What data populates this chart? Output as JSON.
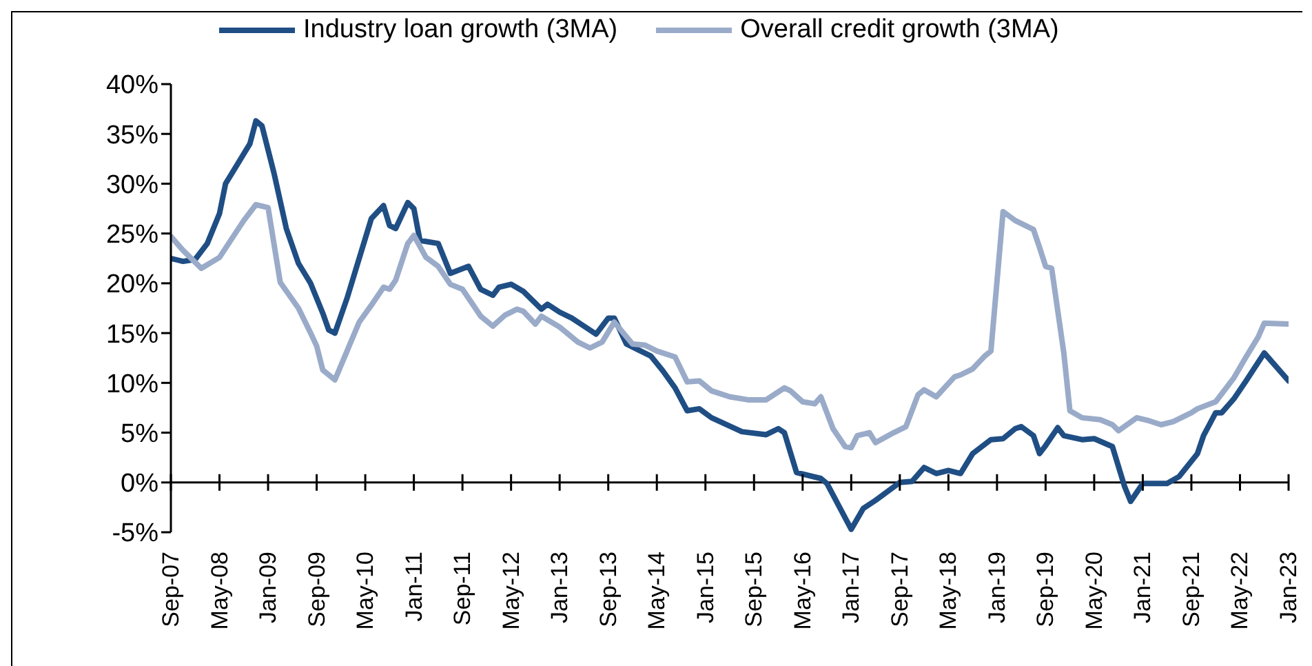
{
  "chart_data": {
    "type": "line",
    "xlim": [
      "2007-09",
      "2023-01"
    ],
    "ylim": [
      -5,
      40
    ],
    "xticks": [
      {
        "value": "2007-09",
        "label": "Sep-07"
      },
      {
        "value": "2008-05",
        "label": "May-08"
      },
      {
        "value": "2009-01",
        "label": "Jan-09"
      },
      {
        "value": "2009-09",
        "label": "Sep-09"
      },
      {
        "value": "2010-05",
        "label": "May-10"
      },
      {
        "value": "2011-01",
        "label": "Jan-11"
      },
      {
        "value": "2011-09",
        "label": "Sep-11"
      },
      {
        "value": "2012-05",
        "label": "May-12"
      },
      {
        "value": "2013-01",
        "label": "Jan-13"
      },
      {
        "value": "2013-09",
        "label": "Sep-13"
      },
      {
        "value": "2014-05",
        "label": "May-14"
      },
      {
        "value": "2015-01",
        "label": "Jan-15"
      },
      {
        "value": "2015-09",
        "label": "Sep-15"
      },
      {
        "value": "2016-05",
        "label": "May-16"
      },
      {
        "value": "2017-01",
        "label": "Jan-17"
      },
      {
        "value": "2017-09",
        "label": "Sep-17"
      },
      {
        "value": "2018-05",
        "label": "May-18"
      },
      {
        "value": "2019-01",
        "label": "Jan-19"
      },
      {
        "value": "2019-09",
        "label": "Sep-19"
      },
      {
        "value": "2020-05",
        "label": "May-20"
      },
      {
        "value": "2021-01",
        "label": "Jan-21"
      },
      {
        "value": "2021-09",
        "label": "Sep-21"
      },
      {
        "value": "2022-05",
        "label": "May-22"
      },
      {
        "value": "2023-01",
        "label": "Jan-23"
      }
    ],
    "yticks": [
      {
        "value": -5,
        "label": "-5%"
      },
      {
        "value": 0,
        "label": "0%"
      },
      {
        "value": 5,
        "label": "5%"
      },
      {
        "value": 10,
        "label": "10%"
      },
      {
        "value": 15,
        "label": "15%"
      },
      {
        "value": 20,
        "label": "20%"
      },
      {
        "value": 25,
        "label": "25%"
      },
      {
        "value": 30,
        "label": "30%"
      },
      {
        "value": 35,
        "label": "35%"
      },
      {
        "value": 40,
        "label": "40%"
      }
    ],
    "legend": "top",
    "marker": "none",
    "line_style": "solid",
    "series": [
      {
        "name": "Industry loan growth (3MA)",
        "color": "#1f4e84",
        "x": [
          "2007-09",
          "2007-11",
          "2008-01",
          "2008-03",
          "2008-05",
          "2008-06",
          "2008-08",
          "2008-10",
          "2008-11",
          "2008-12",
          "2009-02",
          "2009-04",
          "2009-06",
          "2009-08",
          "2009-10",
          "2009-11",
          "2009-12",
          "2010-02",
          "2010-04",
          "2010-06",
          "2010-08",
          "2010-09",
          "2010-10",
          "2010-12",
          "2011-01",
          "2011-02",
          "2011-05",
          "2011-07",
          "2011-10",
          "2011-12",
          "2012-02",
          "2012-03",
          "2012-05",
          "2012-07",
          "2012-10",
          "2012-11",
          "2013-01",
          "2013-03",
          "2013-05",
          "2013-07",
          "2013-09",
          "2013-10",
          "2013-12",
          "2014-04",
          "2014-06",
          "2014-08",
          "2014-10",
          "2014-12",
          "2015-02",
          "2015-07",
          "2015-11",
          "2016-01",
          "2016-02",
          "2016-04",
          "2016-08",
          "2016-09",
          "2017-01",
          "2017-03",
          "2017-05",
          "2017-09",
          "2017-11",
          "2018-01",
          "2018-03",
          "2018-05",
          "2018-07",
          "2018-09",
          "2018-12",
          "2019-02",
          "2019-04",
          "2019-05",
          "2019-07",
          "2019-08",
          "2019-09",
          "2019-11",
          "2019-12",
          "2020-03",
          "2020-05",
          "2020-08",
          "2020-10",
          "2020-11",
          "2021-01",
          "2021-05",
          "2021-07",
          "2021-10",
          "2021-11",
          "2022-01",
          "2022-02",
          "2022-04",
          "2022-06",
          "2022-09",
          "2023-01"
        ],
        "values": [
          22.5,
          22.2,
          22.4,
          24,
          27,
          30,
          32,
          34,
          36.3,
          35.8,
          31,
          25.5,
          22,
          20,
          17,
          15.3,
          15,
          18.5,
          22.5,
          26.5,
          27.8,
          25.8,
          25.5,
          28.1,
          27.5,
          24.3,
          24,
          21,
          21.7,
          19.4,
          18.8,
          19.6,
          19.9,
          19.2,
          17.4,
          17.9,
          17.1,
          16.5,
          15.7,
          14.9,
          16.5,
          16.5,
          13.9,
          12.7,
          11.2,
          9.5,
          7.2,
          7.4,
          6.5,
          5.1,
          4.8,
          5.4,
          5,
          1,
          0.4,
          -0.1,
          -4.7,
          -2.6,
          -1.8,
          0,
          0.1,
          1.5,
          0.9,
          1.2,
          0.9,
          2.9,
          4.3,
          4.4,
          5.4,
          5.6,
          4.7,
          2.9,
          3.7,
          5.5,
          4.7,
          4.3,
          4.4,
          3.6,
          -0.4,
          -1.9,
          -0.1,
          -0.1,
          0.6,
          2.9,
          4.7,
          7,
          7,
          8.4,
          10.2,
          13,
          10.2
        ]
      },
      {
        "name": "Overall credit growth (3MA)",
        "color": "#9aabc9",
        "x": [
          "2007-09",
          "2007-11",
          "2008-02",
          "2008-05",
          "2008-09",
          "2008-11",
          "2009-01",
          "2009-03",
          "2009-06",
          "2009-08",
          "2009-09",
          "2009-10",
          "2009-12",
          "2010-02",
          "2010-04",
          "2010-06",
          "2010-08",
          "2010-09",
          "2010-10",
          "2010-12",
          "2011-01",
          "2011-03",
          "2011-05",
          "2011-07",
          "2011-09",
          "2011-12",
          "2012-02",
          "2012-04",
          "2012-06",
          "2012-07",
          "2012-09",
          "2012-10",
          "2013-01",
          "2013-04",
          "2013-06",
          "2013-08",
          "2013-10",
          "2014-01",
          "2014-03",
          "2014-05",
          "2014-08",
          "2014-10",
          "2014-12",
          "2015-02",
          "2015-05",
          "2015-08",
          "2015-11",
          "2016-02",
          "2016-03",
          "2016-05",
          "2016-07",
          "2016-08",
          "2016-10",
          "2016-12",
          "2017-01",
          "2017-02",
          "2017-04",
          "2017-05",
          "2017-08",
          "2017-10",
          "2017-12",
          "2018-01",
          "2018-03",
          "2018-06",
          "2018-07",
          "2018-09",
          "2018-11",
          "2018-12",
          "2019-02",
          "2019-04",
          "2019-07",
          "2019-08",
          "2019-09",
          "2019-10",
          "2019-12",
          "2020-01",
          "2020-03",
          "2020-06",
          "2020-08",
          "2020-09",
          "2020-12",
          "2021-02",
          "2021-04",
          "2021-06",
          "2021-09",
          "2021-10",
          "2022-01",
          "2022-04",
          "2022-06",
          "2022-08",
          "2022-09",
          "2023-01"
        ],
        "values": [
          24.7,
          23.3,
          21.5,
          22.6,
          26.3,
          27.9,
          27.6,
          20.1,
          17.5,
          15,
          13.7,
          11.3,
          10.3,
          13.2,
          16.1,
          17.8,
          19.6,
          19.4,
          20.3,
          24,
          24.8,
          22.6,
          21.7,
          19.9,
          19.4,
          16.7,
          15.7,
          16.8,
          17.4,
          17.2,
          15.9,
          16.7,
          15.6,
          14.1,
          13.5,
          14.1,
          16.1,
          13.9,
          13.8,
          13.2,
          12.6,
          10.1,
          10.2,
          9.2,
          8.6,
          8.3,
          8.3,
          9.5,
          9.2,
          8.1,
          7.9,
          8.6,
          5.4,
          3.6,
          3.5,
          4.7,
          5,
          4,
          5,
          5.6,
          8.8,
          9.3,
          8.6,
          10.6,
          10.8,
          11.4,
          12.7,
          13.2,
          27.2,
          26.3,
          25.4,
          23.6,
          21.7,
          21.5,
          13,
          7.2,
          6.5,
          6.3,
          5.8,
          5.2,
          6.5,
          6.2,
          5.8,
          6.1,
          7,
          7.4,
          8.1,
          10.5,
          12.6,
          14.6,
          16,
          15.9
        ]
      }
    ]
  }
}
